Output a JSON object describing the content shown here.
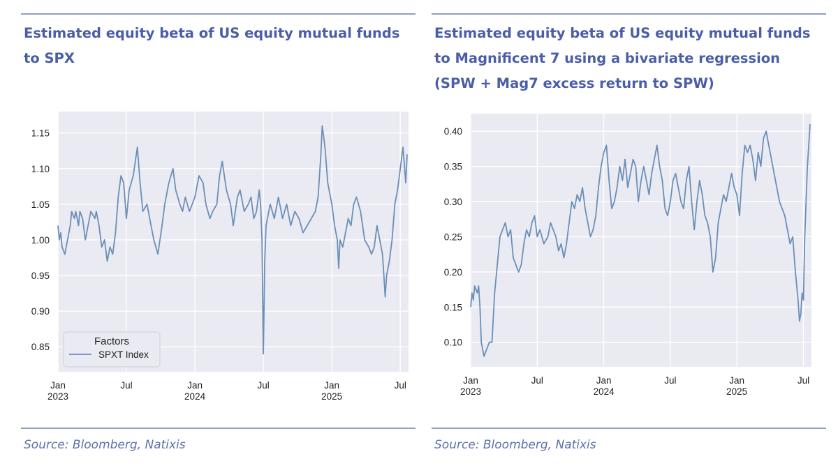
{
  "left": {
    "title": "Estimated equity beta of US equity mutual funds to SPX",
    "source": "Source: Bloomberg, Natixis"
  },
  "right": {
    "title": "Estimated equity beta of US equity mutual funds to Magnificent 7 using a bivariate regression (SPW + Mag7 excess return to SPW)",
    "source": "Source: Bloomberg, Natixis"
  },
  "colors": {
    "line": "#6b8fb8",
    "plot_bg": "#eaeaf2",
    "grid": "#ffffff",
    "accent": "#4a5da8"
  },
  "chart_data": [
    {
      "type": "line",
      "title": "Estimated equity beta of US equity mutual funds to SPX",
      "xlabel": "",
      "ylabel": "",
      "x_range": [
        2023.0,
        2025.55
      ],
      "ylim": [
        0.815,
        1.18
      ],
      "yticks": [
        0.85,
        0.9,
        0.95,
        1.0,
        1.05,
        1.1,
        1.15
      ],
      "ytick_labels": [
        "0.85",
        "0.90",
        "0.95",
        "1.00",
        "1.05",
        "1.10",
        "1.15"
      ],
      "xticks": [
        {
          "t": 2023.0,
          "label": "Jan",
          "year": "2023"
        },
        {
          "t": 2023.5,
          "label": "Jul",
          "year": ""
        },
        {
          "t": 2024.0,
          "label": "Jan",
          "year": "2024"
        },
        {
          "t": 2024.5,
          "label": "Jul",
          "year": ""
        },
        {
          "t": 2025.0,
          "label": "Jan",
          "year": "2025"
        },
        {
          "t": 2025.5,
          "label": "Jul",
          "year": ""
        }
      ],
      "legend": {
        "title": "Factors",
        "entries": [
          "SPXT Index"
        ],
        "position": "bottom-left"
      },
      "series": [
        {
          "name": "SPXT Index",
          "x": [
            2023.0,
            2023.01,
            2023.02,
            2023.03,
            2023.05,
            2023.07,
            2023.09,
            2023.1,
            2023.12,
            2023.13,
            2023.15,
            2023.16,
            2023.18,
            2023.2,
            2023.22,
            2023.24,
            2023.27,
            2023.28,
            2023.3,
            2023.32,
            2023.34,
            2023.36,
            2023.38,
            2023.4,
            2023.42,
            2023.44,
            2023.46,
            2023.48,
            2023.5,
            2023.52,
            2023.55,
            2023.58,
            2023.6,
            2023.62,
            2023.65,
            2023.68,
            2023.7,
            2023.73,
            2023.76,
            2023.78,
            2023.81,
            2023.84,
            2023.86,
            2023.89,
            2023.91,
            2023.93,
            2023.96,
            2023.98,
            2024.0,
            2024.03,
            2024.06,
            2024.08,
            2024.11,
            2024.13,
            2024.16,
            2024.18,
            2024.2,
            2024.23,
            2024.26,
            2024.28,
            2024.31,
            2024.33,
            2024.36,
            2024.39,
            2024.41,
            2024.43,
            2024.45,
            2024.47,
            2024.48,
            2024.49,
            2024.5,
            2024.51,
            2024.52,
            2024.55,
            2024.58,
            2024.61,
            2024.64,
            2024.67,
            2024.7,
            2024.73,
            2024.76,
            2024.79,
            2024.82,
            2024.85,
            2024.88,
            2024.9,
            2024.92,
            2024.93,
            2024.95,
            2024.97,
            2025.0,
            2025.02,
            2025.04,
            2025.05,
            2025.06,
            2025.08,
            2025.1,
            2025.12,
            2025.14,
            2025.16,
            2025.18,
            2025.21,
            2025.24,
            2025.27,
            2025.29,
            2025.31,
            2025.33,
            2025.35,
            2025.37,
            2025.38,
            2025.39,
            2025.4,
            2025.42,
            2025.44,
            2025.46,
            2025.48,
            2025.5,
            2025.52,
            2025.54,
            2025.55
          ],
          "values": [
            1.02,
            1.0,
            1.01,
            0.99,
            0.98,
            1.0,
            1.02,
            1.04,
            1.03,
            1.04,
            1.02,
            1.04,
            1.03,
            1.0,
            1.02,
            1.04,
            1.03,
            1.04,
            1.02,
            0.99,
            1.0,
            0.97,
            0.99,
            0.98,
            1.01,
            1.06,
            1.09,
            1.08,
            1.03,
            1.07,
            1.09,
            1.13,
            1.08,
            1.04,
            1.05,
            1.02,
            1.0,
            0.98,
            1.02,
            1.05,
            1.08,
            1.1,
            1.07,
            1.05,
            1.04,
            1.06,
            1.04,
            1.05,
            1.06,
            1.09,
            1.08,
            1.05,
            1.03,
            1.04,
            1.05,
            1.09,
            1.11,
            1.07,
            1.05,
            1.02,
            1.06,
            1.07,
            1.04,
            1.05,
            1.06,
            1.03,
            1.04,
            1.07,
            1.05,
            1.0,
            0.84,
            0.97,
            1.02,
            1.05,
            1.03,
            1.06,
            1.03,
            1.05,
            1.02,
            1.04,
            1.03,
            1.01,
            1.02,
            1.03,
            1.04,
            1.06,
            1.12,
            1.16,
            1.13,
            1.08,
            1.05,
            1.02,
            1.0,
            0.96,
            1.0,
            0.99,
            1.01,
            1.03,
            1.02,
            1.05,
            1.06,
            1.04,
            1.0,
            0.99,
            0.98,
            0.99,
            1.02,
            1.0,
            0.98,
            0.95,
            0.92,
            0.95,
            0.97,
            1.0,
            1.05,
            1.07,
            1.1,
            1.13,
            1.08,
            1.12
          ]
        }
      ]
    },
    {
      "type": "line",
      "title": "Estimated equity beta of US equity mutual funds to Magnificent 7 using a bivariate regression (SPW + Mag7 excess return to SPW)",
      "xlabel": "",
      "ylabel": "",
      "x_range": [
        2023.0,
        2025.55
      ],
      "ylim": [
        0.065,
        0.425
      ],
      "yticks": [
        0.1,
        0.15,
        0.2,
        0.25,
        0.3,
        0.35,
        0.4
      ],
      "ytick_labels": [
        "0.10",
        "0.15",
        "0.20",
        "0.25",
        "0.30",
        "0.35",
        "0.40"
      ],
      "xticks": [
        {
          "t": 2023.0,
          "label": "Jan",
          "year": "2023"
        },
        {
          "t": 2023.5,
          "label": "Jul",
          "year": ""
        },
        {
          "t": 2024.0,
          "label": "Jan",
          "year": "2024"
        },
        {
          "t": 2024.5,
          "label": "Jul",
          "year": ""
        },
        {
          "t": 2025.0,
          "label": "Jan",
          "year": "2025"
        },
        {
          "t": 2025.5,
          "label": "Jul",
          "year": ""
        }
      ],
      "legend": null,
      "series": [
        {
          "name": "Mag7",
          "x": [
            2023.0,
            2023.01,
            2023.02,
            2023.03,
            2023.05,
            2023.06,
            2023.07,
            2023.08,
            2023.1,
            2023.12,
            2023.14,
            2023.16,
            2023.18,
            2023.2,
            2023.22,
            2023.24,
            2023.26,
            2023.28,
            2023.3,
            2023.32,
            2023.34,
            2023.36,
            2023.38,
            2023.4,
            2023.42,
            2023.44,
            2023.46,
            2023.48,
            2023.5,
            2023.52,
            2023.55,
            2023.58,
            2023.6,
            2023.62,
            2023.64,
            2023.66,
            2023.68,
            2023.7,
            2023.72,
            2023.74,
            2023.76,
            2023.78,
            2023.8,
            2023.82,
            2023.84,
            2023.86,
            2023.88,
            2023.9,
            2023.92,
            2023.94,
            2023.96,
            2023.98,
            2024.0,
            2024.02,
            2024.04,
            2024.06,
            2024.08,
            2024.1,
            2024.12,
            2024.14,
            2024.16,
            2024.18,
            2024.2,
            2024.22,
            2024.24,
            2024.26,
            2024.28,
            2024.3,
            2024.32,
            2024.34,
            2024.36,
            2024.38,
            2024.4,
            2024.42,
            2024.44,
            2024.46,
            2024.48,
            2024.5,
            2024.52,
            2024.54,
            2024.56,
            2024.58,
            2024.6,
            2024.62,
            2024.64,
            2024.66,
            2024.68,
            2024.7,
            2024.72,
            2024.74,
            2024.76,
            2024.78,
            2024.8,
            2024.82,
            2024.84,
            2024.86,
            2024.88,
            2024.9,
            2024.92,
            2024.94,
            2024.96,
            2024.98,
            2025.0,
            2025.02,
            2025.04,
            2025.06,
            2025.08,
            2025.1,
            2025.12,
            2025.14,
            2025.16,
            2025.18,
            2025.2,
            2025.22,
            2025.24,
            2025.26,
            2025.28,
            2025.3,
            2025.32,
            2025.34,
            2025.36,
            2025.38,
            2025.4,
            2025.42,
            2025.44,
            2025.46,
            2025.47,
            2025.48,
            2025.49,
            2025.5,
            2025.51,
            2025.52,
            2025.53,
            2025.54,
            2025.55
          ],
          "values": [
            0.15,
            0.17,
            0.16,
            0.18,
            0.17,
            0.18,
            0.15,
            0.1,
            0.08,
            0.09,
            0.1,
            0.1,
            0.17,
            0.21,
            0.25,
            0.26,
            0.27,
            0.25,
            0.26,
            0.22,
            0.21,
            0.2,
            0.21,
            0.24,
            0.26,
            0.25,
            0.27,
            0.28,
            0.25,
            0.26,
            0.24,
            0.25,
            0.27,
            0.26,
            0.25,
            0.23,
            0.24,
            0.22,
            0.24,
            0.27,
            0.3,
            0.29,
            0.31,
            0.3,
            0.32,
            0.29,
            0.27,
            0.25,
            0.26,
            0.28,
            0.32,
            0.35,
            0.37,
            0.38,
            0.33,
            0.29,
            0.3,
            0.32,
            0.35,
            0.33,
            0.36,
            0.32,
            0.34,
            0.36,
            0.35,
            0.3,
            0.33,
            0.35,
            0.33,
            0.31,
            0.34,
            0.36,
            0.38,
            0.35,
            0.33,
            0.29,
            0.28,
            0.3,
            0.33,
            0.34,
            0.32,
            0.3,
            0.29,
            0.33,
            0.35,
            0.3,
            0.26,
            0.3,
            0.33,
            0.31,
            0.28,
            0.27,
            0.25,
            0.2,
            0.22,
            0.27,
            0.29,
            0.31,
            0.3,
            0.32,
            0.34,
            0.32,
            0.31,
            0.28,
            0.34,
            0.38,
            0.37,
            0.38,
            0.36,
            0.33,
            0.37,
            0.35,
            0.39,
            0.4,
            0.38,
            0.36,
            0.34,
            0.32,
            0.3,
            0.29,
            0.28,
            0.26,
            0.24,
            0.25,
            0.2,
            0.16,
            0.13,
            0.14,
            0.17,
            0.16,
            0.25,
            0.3,
            0.35,
            0.38,
            0.41
          ]
        }
      ]
    }
  ]
}
